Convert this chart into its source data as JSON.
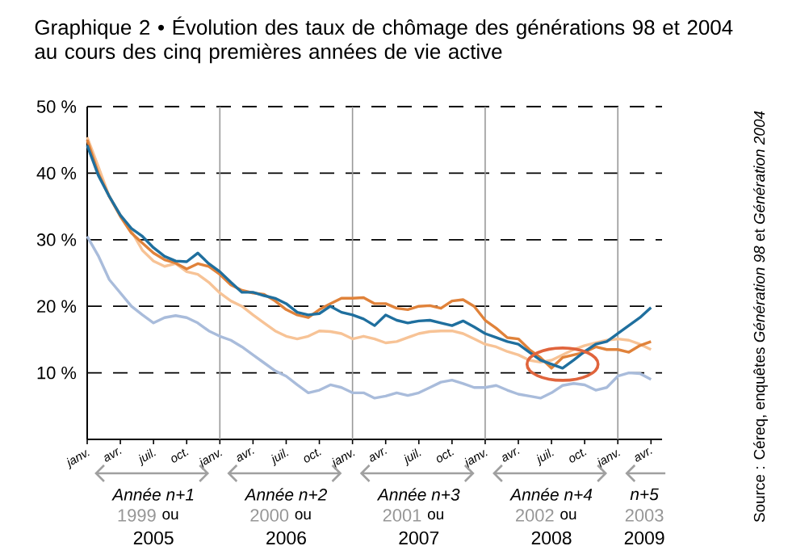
{
  "chart_data": {
    "type": "line",
    "title": "Graphique 2 • Évolution des taux de chômage des générations 98 et 2004 au cours des cinq premières années de vie active",
    "categories": [
      "janv.",
      null,
      null,
      "avr.",
      null,
      null,
      "juil.",
      null,
      null,
      "oct.",
      null,
      null,
      "janv.",
      null,
      null,
      "avr.",
      null,
      null,
      "juil.",
      null,
      null,
      "oct.",
      null,
      null,
      "janv.",
      null,
      null,
      "avr.",
      null,
      null,
      "juil.",
      null,
      null,
      "oct.",
      null,
      null,
      "janv.",
      null,
      null,
      "avr.",
      null,
      null,
      "juil.",
      null,
      null,
      "oct.",
      null,
      null,
      "janv.",
      null,
      null,
      "avr."
    ],
    "ylim": [
      0,
      50
    ],
    "yticks": [
      {
        "value": 10,
        "label": "10 %"
      },
      {
        "value": 20,
        "label": "20 %"
      },
      {
        "value": 30,
        "label": "30 %"
      },
      {
        "value": 40,
        "label": "40 %"
      },
      {
        "value": 50,
        "label": "50 %"
      }
    ],
    "grid": true,
    "line_style": "solid",
    "series": [
      {
        "color": "#a9bcdb",
        "values": [
          30.5,
          27.6,
          24,
          22,
          20,
          18.7,
          17.5,
          18.3,
          18.6,
          18.3,
          17.5,
          16.3,
          15.5,
          14.9,
          13.9,
          12.7,
          11.5,
          10.3,
          9.5,
          8.2,
          7,
          7.4,
          8.2,
          7.8,
          7,
          7,
          6.2,
          6.5,
          7,
          6.6,
          7,
          7.8,
          8.6,
          8.9,
          8.4,
          7.8,
          7.8,
          8.1,
          7.4,
          6.8,
          6.5,
          6.2,
          7,
          8.1,
          8.4,
          8.2,
          7.4,
          7.8,
          9.5,
          10,
          9.9,
          9.0
        ]
      },
      {
        "color": "#f7c396",
        "values": [
          45.4,
          41,
          36.5,
          33.7,
          31.3,
          28.4,
          26.8,
          26,
          26.4,
          25.2,
          24.8,
          23.6,
          22,
          20.8,
          20,
          18.7,
          17.5,
          16.3,
          15.5,
          15.1,
          15.5,
          16.3,
          16.2,
          15.9,
          15.1,
          15.5,
          15.1,
          14.5,
          14.7,
          15.3,
          15.9,
          16.2,
          16.3,
          16.3,
          15.9,
          15.1,
          14.3,
          13.9,
          13.2,
          12.7,
          11.9,
          11.6,
          11.9,
          12.7,
          13.5,
          14.1,
          14.5,
          14.9,
          15.1,
          14.9,
          14.3,
          13.5
        ]
      },
      {
        "color": "#e0823a",
        "values": [
          45,
          40,
          36.5,
          33.5,
          31,
          29.5,
          28,
          27,
          26.5,
          25.6,
          26.4,
          26,
          24.8,
          23.2,
          22.4,
          22.0,
          21.8,
          20.8,
          19.5,
          18.7,
          18.3,
          19.5,
          20.4,
          21.2,
          21.2,
          21.3,
          20.4,
          20.4,
          19.7,
          19.5,
          20,
          20.1,
          19.7,
          20.8,
          21,
          20,
          17.9,
          16.7,
          15.3,
          15.1,
          13.5,
          12.3,
          10.7,
          12.3,
          12.7,
          13.1,
          13.9,
          13.5,
          13.5,
          13.1,
          14.1,
          14.7
        ]
      },
      {
        "color": "#1f6f9e",
        "values": [
          44.2,
          39.7,
          36.5,
          33.7,
          31.7,
          30.5,
          28.8,
          27.5,
          26.8,
          26.7,
          28.0,
          26.4,
          25.2,
          23.6,
          22.1,
          22.1,
          21.6,
          21.2,
          20.4,
          19.1,
          18.7,
          18.9,
          20.0,
          19.1,
          18.7,
          18.1,
          17.1,
          18.7,
          17.9,
          17.5,
          17.8,
          17.9,
          17.5,
          17.1,
          17.8,
          16.9,
          15.9,
          15.3,
          14.7,
          14.3,
          13.1,
          11.9,
          11.3,
          10.7,
          11.9,
          13.2,
          14.3,
          14.7,
          15.9,
          17.1,
          18.3,
          19.8
        ]
      }
    ],
    "annotations": [
      "*Année n+1*",
      "1999",
      "ou",
      "2005",
      "*Année n+2*",
      "2000",
      "ou",
      "2006",
      "*Année n+3*",
      "2001",
      "ou",
      "2007",
      "*Année n+4*",
      "2002",
      "ou",
      "2008",
      "*n+5*",
      "2003",
      "2009",
      "Source : Céreq, enquêtes *Génération 98* et *Génération 2004*"
    ]
  }
}
